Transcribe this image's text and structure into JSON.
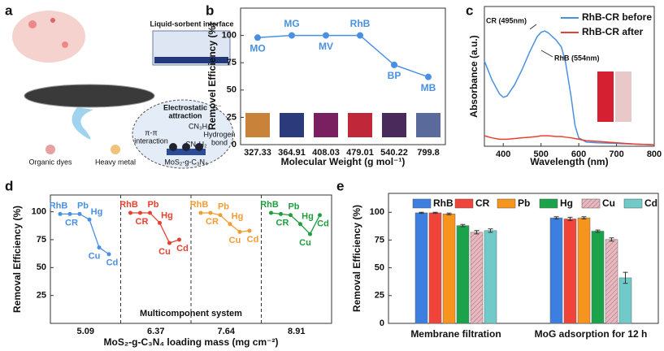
{
  "schematic": {
    "label": "a",
    "interface": "Liquid-sorbent interface",
    "electrostatic_1": "Electrostatic",
    "electrostatic_2": "attraction",
    "s": "S⁻",
    "pipi_1": "π-π",
    "pipi_2": "interaction",
    "hbond_1": "Hydrogen",
    "hbond_2": "bond",
    "cn_1": "CN₃H₂",
    "cn_2": "CN₃H₂",
    "dyes": "Organic dyes",
    "metal": "Heavy metal",
    "mos2": "MoS₂-g-C₃N₄"
  },
  "chart_data": [
    {
      "type": "line",
      "label": "b",
      "categories": [
        "327.33",
        "364.91",
        "408.03",
        "479.01",
        "540.22",
        "799.8"
      ],
      "values": [
        98,
        100,
        100,
        100,
        73,
        62
      ],
      "point_labels": [
        "MO",
        "MG",
        "MV",
        "RhB",
        "BP",
        "MB"
      ],
      "color": "#4a90e2",
      "ylim": [
        0,
        125
      ],
      "yticks": [
        0,
        25,
        50,
        75,
        100
      ],
      "xlabel": "Molecular Weight (g mol⁻¹)",
      "ylabel": "Removel Efficiency (%)"
    },
    {
      "type": "line",
      "label": "c",
      "x": [
        350,
        370,
        390,
        400,
        410,
        430,
        450,
        470,
        490,
        500,
        510,
        520,
        540,
        554,
        565,
        580,
        590,
        600,
        620,
        650,
        700,
        750,
        800
      ],
      "series": [
        {
          "name": "RhB-CR before",
          "color": "#4a90e2",
          "values": [
            1.22,
            0.95,
            0.75,
            0.7,
            0.72,
            0.88,
            1.1,
            1.35,
            1.57,
            1.63,
            1.65,
            1.62,
            1.52,
            1.42,
            1.2,
            0.7,
            0.3,
            0.12,
            0.06,
            0.05,
            0.04,
            0.03,
            0.02
          ]
        },
        {
          "name": "RhB-CR after",
          "color": "#e8402f",
          "values": [
            0.15,
            0.12,
            0.1,
            0.1,
            0.1,
            0.11,
            0.12,
            0.13,
            0.14,
            0.15,
            0.15,
            0.15,
            0.14,
            0.14,
            0.13,
            0.12,
            0.11,
            0.1,
            0.08,
            0.07,
            0.05,
            0.03,
            0.02
          ]
        }
      ],
      "xlim": [
        350,
        800
      ],
      "xticks": [
        400,
        500,
        600,
        700,
        800
      ],
      "ylim": [
        0,
        2
      ],
      "xlabel": "Wavelength (nm)",
      "ylabel": "Absorbance (a.u.)",
      "annotations": [
        "CR (495nm)",
        "RhB (554nm)"
      ]
    },
    {
      "type": "group_line",
      "label": "d",
      "categories": [
        "RhB",
        "CR",
        "Pb",
        "Hg",
        "Cu",
        "Cd"
      ],
      "groups": [
        {
          "label": "5.09",
          "color": "#4a90e2",
          "values": [
            98,
            98,
            98,
            93,
            68,
            62
          ]
        },
        {
          "label": "6.37",
          "color": "#e8402f",
          "values": [
            99,
            99,
            99,
            90,
            72,
            75
          ]
        },
        {
          "label": "7.64",
          "color": "#f39c34",
          "values": [
            99,
            99,
            97,
            89,
            82,
            83
          ]
        },
        {
          "label": "8.91",
          "color": "#1e9e3e",
          "values": [
            99,
            98,
            97,
            89,
            80,
            97
          ]
        }
      ],
      "ylim": [
        0,
        115
      ],
      "yticks": [
        25,
        50,
        75,
        100
      ],
      "note": "Multicomponent system",
      "xlabel": "MoS₂-g-C₃N₄ loading mass (mg cm⁻²)",
      "ylabel": "Removal Efficiency (%)"
    },
    {
      "type": "bar",
      "label": "e",
      "categories": [
        "Membrane filtration",
        "MoG adsorption for 12 h"
      ],
      "series": [
        {
          "name": "RhB",
          "color": "#3d7fe0",
          "values": [
            99.5,
            95
          ],
          "errors": [
            0.5,
            1
          ]
        },
        {
          "name": "CR",
          "color": "#f0443a",
          "values": [
            99.5,
            94
          ],
          "errors": [
            0.5,
            1.5
          ]
        },
        {
          "name": "Pb",
          "color": "#f7941d",
          "values": [
            98.5,
            95
          ],
          "errors": [
            0.8,
            1
          ]
        },
        {
          "name": "Hg",
          "color": "#1aa34a",
          "values": [
            88,
            83
          ],
          "errors": [
            1,
            1
          ]
        },
        {
          "name": "Cu",
          "color": "#e8b8c0",
          "values": [
            82,
            75.5
          ],
          "errors": [
            1.5,
            1.5
          ],
          "pattern": "hatch"
        },
        {
          "name": "Cd",
          "color": "#6fcac8",
          "values": [
            83.5,
            41
          ],
          "errors": [
            1.5,
            5
          ]
        }
      ],
      "ylim": [
        0,
        117
      ],
      "yticks": [
        0,
        25,
        50,
        75,
        100
      ],
      "ylabel": "Removal Efficiency (%)"
    }
  ]
}
